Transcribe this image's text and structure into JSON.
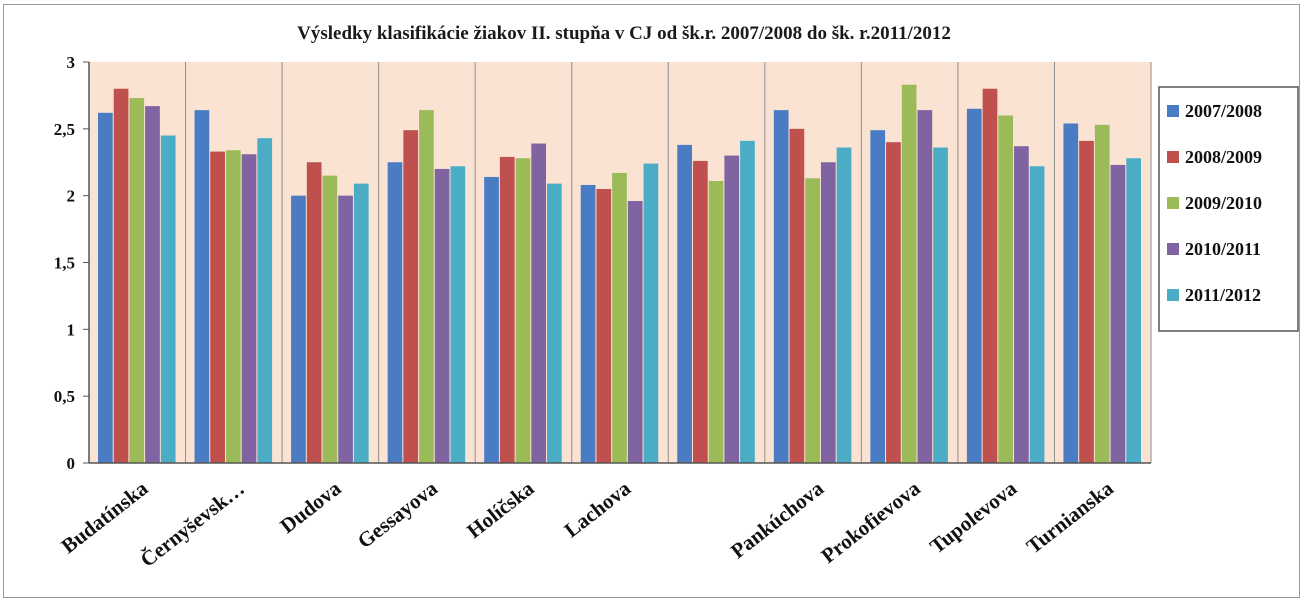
{
  "chart_data": {
    "type": "bar",
    "title": "Výsledky klasifikácie žiakov II. stupňa v CJ od šk.r. 2007/2008 do šk. r.2011/2012",
    "xlabel": "",
    "ylabel": "",
    "ylim": [
      0,
      3
    ],
    "yticks": [
      "0",
      "0,5",
      "1",
      "1,5",
      "2",
      "2,5",
      "3"
    ],
    "grid": "vertical separators between categories",
    "plot_background": "#fbe3d3",
    "legend_position": "right",
    "categories": [
      "Budatínska",
      "Černyševsk…",
      "Dudova",
      "Gessayova",
      "Holíčska",
      "Lachova",
      "",
      "Pankúchova",
      "Prokofievova",
      "Tupolevova",
      "Turnianska"
    ],
    "series": [
      {
        "name": "2007/2008",
        "color": "#4a7cc4",
        "values": [
          2.62,
          2.64,
          2.0,
          2.25,
          2.14,
          2.08,
          2.38,
          2.64,
          2.49,
          2.65,
          2.54
        ]
      },
      {
        "name": "2008/2009",
        "color": "#c0504d",
        "values": [
          2.8,
          2.33,
          2.25,
          2.49,
          2.29,
          2.05,
          2.26,
          2.5,
          2.4,
          2.8,
          2.41
        ]
      },
      {
        "name": "2009/2010",
        "color": "#9bbb59",
        "values": [
          2.73,
          2.34,
          2.15,
          2.64,
          2.28,
          2.17,
          2.11,
          2.13,
          2.83,
          2.6,
          2.53
        ]
      },
      {
        "name": "2010/2011",
        "color": "#8064a2",
        "values": [
          2.67,
          2.31,
          2.0,
          2.2,
          2.39,
          1.96,
          2.3,
          2.25,
          2.64,
          2.37,
          2.23
        ]
      },
      {
        "name": "2011/2012",
        "color": "#4bacc6",
        "values": [
          2.45,
          2.43,
          2.09,
          2.22,
          2.09,
          2.24,
          2.41,
          2.36,
          2.36,
          2.22,
          2.28
        ]
      }
    ]
  }
}
